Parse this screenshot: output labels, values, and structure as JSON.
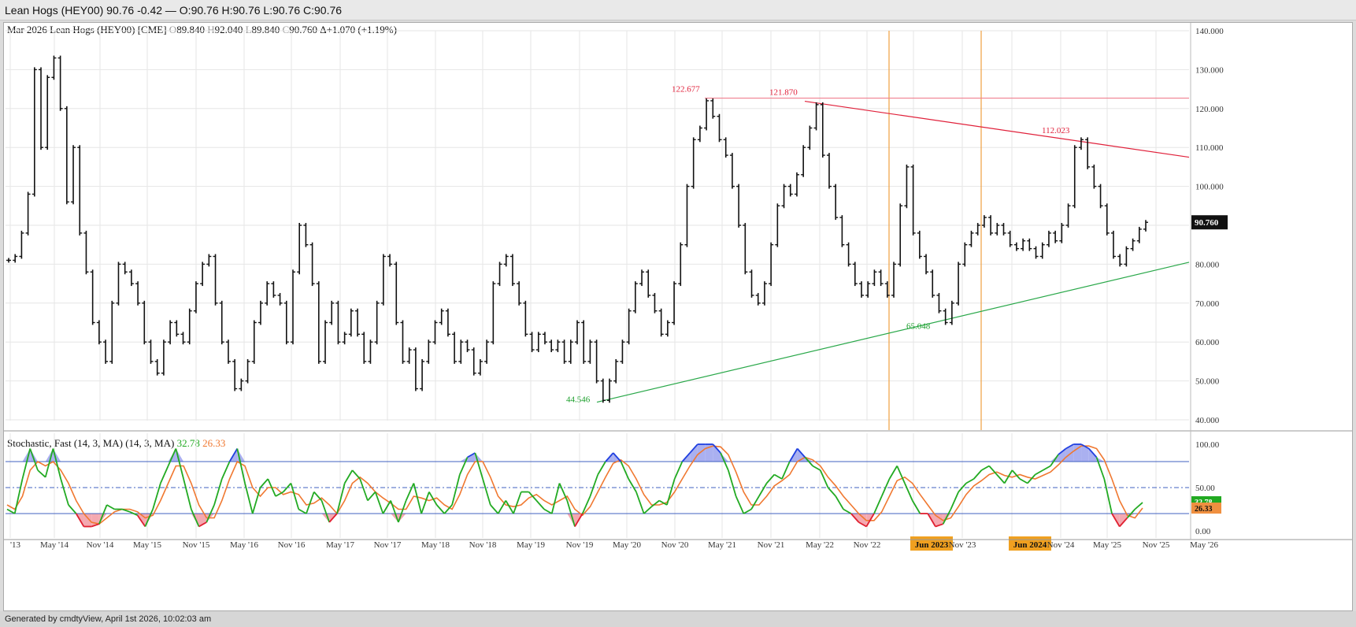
{
  "window": {
    "title": "Lean Hogs (HEY00) 90.76 -0.42 — O:90.76 H:90.76 L:90.76 C:90.76"
  },
  "footer": {
    "text": "Generated by cmdtyView, April 1st 2026, 10:02:03 am"
  },
  "chart_data": [
    {
      "type": "ohlc",
      "title": "Mar 2026 Lean Hogs (HEY00) [CME]",
      "quote": {
        "o_label": "O",
        "o": "89.840",
        "h_label": "H",
        "h": "92.040",
        "l_label": "L",
        "l": "89.840",
        "c_label": "C",
        "c": "90.760",
        "change": "Δ+1.070 (+1.19%)"
      },
      "last_price_label": "90.760",
      "ylim": [
        40,
        140
      ],
      "y_ticks": [
        "140.000",
        "130.000",
        "120.000",
        "110.000",
        "100.000",
        "90.000",
        "80.000",
        "70.000",
        "60.000",
        "50.000",
        "40.000"
      ],
      "x_ticks": [
        "'13",
        "May '14",
        "Nov '14",
        "May '15",
        "Nov '15",
        "May '16",
        "Nov '16",
        "May '17",
        "Nov '17",
        "May '18",
        "Nov '18",
        "May '19",
        "Nov '19",
        "May '20",
        "Nov '20",
        "May '21",
        "Nov '21",
        "May '22",
        "Nov '22",
        "Jun 2023",
        "Nov '23",
        "Jun 2024",
        "Nov '24",
        "May '25",
        "Nov '25",
        "May '26"
      ],
      "x_highlight": [
        "Jun 2023",
        "Jun 2024"
      ],
      "grid": true,
      "close_series": [
        81,
        82,
        88,
        98,
        130,
        110,
        128,
        133,
        120,
        96,
        110,
        88,
        78,
        65,
        60,
        55,
        70,
        80,
        78,
        75,
        70,
        60,
        55,
        52,
        60,
        65,
        62,
        60,
        68,
        75,
        80,
        82,
        70,
        60,
        55,
        48,
        50,
        55,
        65,
        70,
        75,
        72,
        70,
        60,
        78,
        90,
        85,
        75,
        55,
        65,
        70,
        60,
        62,
        68,
        62,
        55,
        60,
        70,
        82,
        80,
        65,
        55,
        58,
        48,
        55,
        60,
        65,
        68,
        62,
        55,
        60,
        58,
        52,
        55,
        60,
        75,
        80,
        82,
        75,
        70,
        62,
        58,
        62,
        60,
        58,
        60,
        55,
        60,
        65,
        55,
        60,
        50,
        45,
        50,
        55,
        60,
        68,
        75,
        78,
        72,
        68,
        62,
        65,
        75,
        85,
        100,
        112,
        115,
        122,
        118,
        112,
        108,
        100,
        90,
        78,
        72,
        70,
        75,
        85,
        95,
        100,
        98,
        103,
        110,
        115,
        121,
        108,
        100,
        92,
        85,
        80,
        75,
        72,
        75,
        78,
        75,
        72,
        80,
        95,
        105,
        88,
        82,
        78,
        72,
        68,
        65,
        70,
        80,
        85,
        88,
        90,
        92,
        88,
        90,
        88,
        85,
        84,
        86,
        84,
        82,
        85,
        88,
        86,
        90,
        95,
        110,
        112,
        105,
        100,
        95,
        88,
        82,
        80,
        84,
        86,
        89,
        90.76
      ],
      "annotations": [
        {
          "text": "122.677",
          "value": 122.677,
          "color": "#e0203a"
        },
        {
          "text": "121.870",
          "value": 121.87,
          "color": "#e0203a"
        },
        {
          "text": "112.023",
          "value": 112.023,
          "color": "#e0203a"
        },
        {
          "text": "65.048",
          "value": 65.048,
          "color": "#1a9e2a"
        },
        {
          "text": "44.546",
          "value": 44.546,
          "color": "#1a9e2a"
        }
      ],
      "trendlines": [
        {
          "name": "resistance-horizontal",
          "from": 122.677,
          "to": 122.677,
          "color": "#f08090"
        },
        {
          "name": "resistance-declining",
          "from": 121.87,
          "to": 107.5,
          "color": "#e0203a"
        },
        {
          "name": "support-rising",
          "from": 44.546,
          "to": 80.5,
          "color": "#2aa84a"
        }
      ],
      "vlines_color": "#f0a040"
    },
    {
      "type": "line",
      "title": "Stochastic, Fast (14, 3, MA)  (14, 3, MA)",
      "series": [
        {
          "name": "32.78",
          "color": "#22aa22",
          "values": [
            25,
            20,
            60,
            95,
            70,
            62,
            95,
            60,
            30,
            20,
            5,
            5,
            8,
            30,
            25,
            25,
            22,
            18,
            5,
            25,
            55,
            75,
            95,
            60,
            25,
            5,
            10,
            30,
            60,
            80,
            95,
            55,
            20,
            50,
            60,
            40,
            45,
            55,
            25,
            20,
            45,
            35,
            10,
            20,
            55,
            70,
            60,
            35,
            45,
            20,
            35,
            10,
            35,
            55,
            20,
            45,
            30,
            20,
            30,
            65,
            85,
            90,
            60,
            30,
            20,
            35,
            20,
            45,
            45,
            35,
            25,
            20,
            55,
            35,
            5,
            20,
            40,
            65,
            80,
            90,
            80,
            60,
            45,
            20,
            28,
            35,
            30,
            60,
            80,
            90,
            100,
            100,
            100,
            90,
            70,
            40,
            20,
            25,
            40,
            55,
            65,
            60,
            80,
            95,
            85,
            75,
            70,
            50,
            40,
            25,
            20,
            10,
            5,
            20,
            40,
            60,
            75,
            55,
            35,
            20,
            20,
            5,
            8,
            25,
            45,
            55,
            60,
            70,
            75,
            65,
            55,
            70,
            60,
            55,
            65,
            70,
            75,
            88,
            95,
            100,
            100,
            95,
            85,
            60,
            20,
            5,
            15,
            25,
            32.78
          ]
        },
        {
          "name": "26.33",
          "color": "#f07830",
          "values": [
            30,
            25,
            40,
            70,
            80,
            75,
            80,
            70,
            55,
            35,
            20,
            10,
            8,
            15,
            22,
            25,
            25,
            22,
            15,
            18,
            35,
            55,
            75,
            75,
            55,
            30,
            15,
            15,
            35,
            60,
            80,
            75,
            50,
            40,
            50,
            50,
            42,
            45,
            42,
            30,
            32,
            38,
            30,
            20,
            35,
            55,
            62,
            55,
            45,
            38,
            32,
            25,
            25,
            40,
            38,
            35,
            38,
            30,
            25,
            42,
            65,
            80,
            80,
            62,
            40,
            30,
            28,
            30,
            38,
            42,
            35,
            30,
            35,
            40,
            25,
            18,
            28,
            45,
            62,
            78,
            82,
            75,
            60,
            42,
            30,
            30,
            33,
            45,
            60,
            75,
            88,
            95,
            98,
            97,
            88,
            68,
            45,
            30,
            30,
            40,
            52,
            58,
            65,
            80,
            85,
            82,
            75,
            62,
            52,
            40,
            30,
            20,
            12,
            12,
            22,
            40,
            58,
            62,
            55,
            42,
            30,
            18,
            12,
            15,
            28,
            42,
            52,
            58,
            65,
            68,
            64,
            62,
            65,
            62,
            60,
            64,
            68,
            76,
            85,
            92,
            98,
            98,
            95,
            82,
            60,
            35,
            18,
            15,
            26.33
          ]
        }
      ],
      "ylim": [
        0,
        100
      ],
      "y_ticks": [
        "100.00",
        "50.00",
        "0.00"
      ],
      "overbought": 80,
      "oversold": 20,
      "last_labels": {
        "k": "32.78",
        "d": "26.33"
      }
    }
  ]
}
